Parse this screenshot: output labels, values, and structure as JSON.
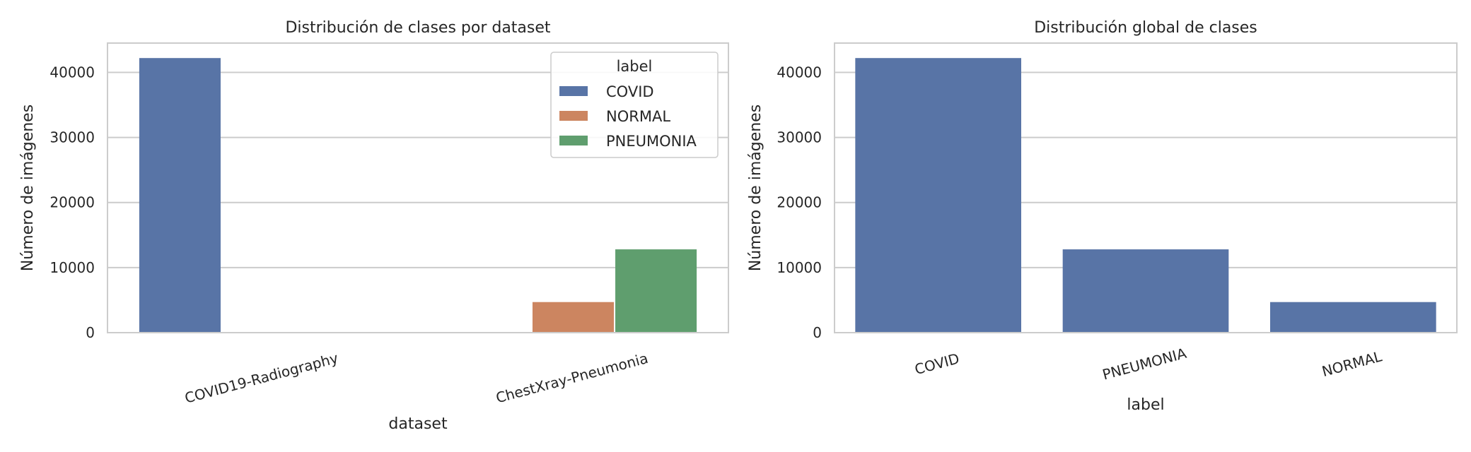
{
  "colors": {
    "COVID": "#5874a6",
    "NORMAL": "#cc8560",
    "PNEUMONIA": "#5f9e6e",
    "grid": "#cccccc",
    "frame": "#cccccc",
    "text": "#262626"
  },
  "chart_data": [
    {
      "type": "bar",
      "title": "Distribución de clases por dataset",
      "xlabel": "dataset",
      "ylabel": "Número de imágenes",
      "categories": [
        "COVID19-Radiography",
        "ChestXray-Pneumonia"
      ],
      "series": [
        {
          "name": "COVID",
          "values": [
            42200,
            0
          ]
        },
        {
          "name": "NORMAL",
          "values": [
            0,
            4700
          ]
        },
        {
          "name": "PNEUMONIA",
          "values": [
            0,
            12800
          ]
        }
      ],
      "ylim": [
        0,
        44500
      ],
      "yticks": [
        0,
        10000,
        20000,
        30000,
        40000
      ],
      "grid": true,
      "legend": {
        "title": "label",
        "placement": "top-right"
      }
    },
    {
      "type": "bar",
      "title": "Distribución global de clases",
      "xlabel": "label",
      "ylabel": "Número de imágenes",
      "categories": [
        "COVID",
        "PNEUMONIA",
        "NORMAL"
      ],
      "values": [
        42200,
        12800,
        4700
      ],
      "ylim": [
        0,
        44500
      ],
      "yticks": [
        0,
        10000,
        20000,
        30000,
        40000
      ],
      "grid": true
    }
  ]
}
